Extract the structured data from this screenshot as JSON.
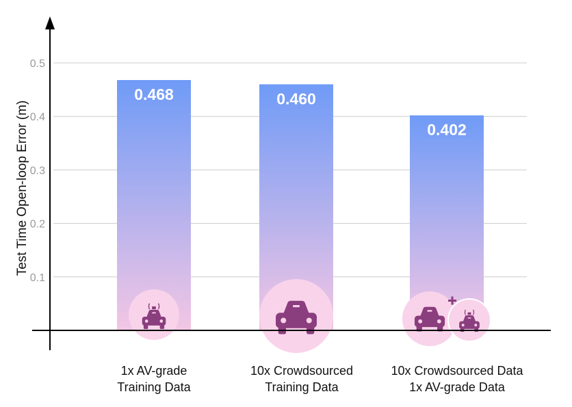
{
  "chart_data": {
    "type": "bar",
    "title": "",
    "xlabel": "",
    "ylabel": "Test Time Open-loop Error (m)",
    "ylim": [
      0,
      0.5
    ],
    "yticks": [
      0.1,
      0.2,
      0.3,
      0.4,
      0.5
    ],
    "grid": true,
    "categories": [
      [
        "1x AV-grade",
        "Training Data"
      ],
      [
        "10x Crowdsourced",
        "Training Data"
      ],
      [
        "10x Crowdsourced Data",
        "1x AV-grade Data"
      ]
    ],
    "values": [
      0.468,
      0.46,
      0.402
    ],
    "value_labels": [
      "0.468",
      "0.460",
      "0.402"
    ],
    "category_icons": [
      [
        "sensor-car-icon"
      ],
      [
        "car-icon"
      ],
      [
        "car-icon",
        "plus-icon",
        "sensor-car-icon"
      ]
    ]
  },
  "colors": {
    "bar_top": "#6f9bf7",
    "bar_bottom": "#f3c6e4",
    "icon_circle": "#f9d3ea",
    "icon_fill": "#8a3e7e",
    "grid": "#cccccc",
    "axis": "#000000"
  }
}
